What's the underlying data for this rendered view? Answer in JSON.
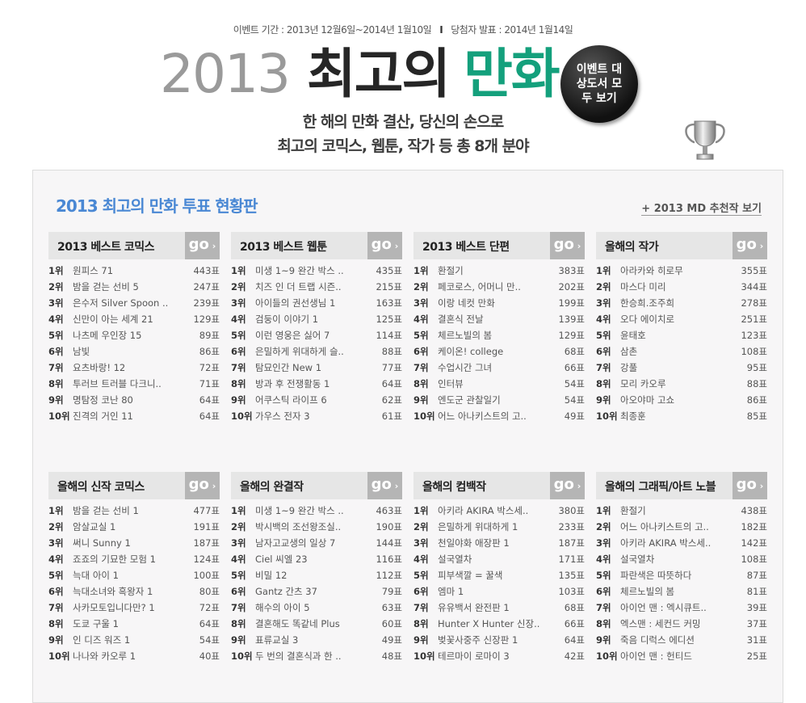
{
  "header": {
    "period": "이벤트 기간 : 2013년 12월6일~2014년 1월10일",
    "separator": "I",
    "announce": "당첨자 발표 : 2014년 1월14일",
    "title_year": "2013",
    "title_main": "최고의",
    "title_accent": "만화",
    "event_button": "이벤트 대상도서 모두 보기",
    "subtitle_1": "한 해의 만화 결산, 당신의 손으로",
    "subtitle_2": "최고의 코믹스, 웹툰, 작가 등 총 8개 분야",
    "accent_color": "#14a07c",
    "icon": "trophy-icon"
  },
  "board": {
    "title": "2013 최고의 만화 투표 현황판",
    "md_link": "+ 2013 MD 추천작 보기",
    "title_color": "#4a88d4",
    "go_label": "go",
    "panels": [
      {
        "title": "2013 베스트 코믹스",
        "items": [
          [
            "1위",
            "원피스 71",
            "443표"
          ],
          [
            "2위",
            "밤을 걷는 선비 5",
            "247표"
          ],
          [
            "3위",
            "은수저 Silver Spoon ..",
            "239표"
          ],
          [
            "4위",
            "신만이 아는 세계 21",
            "129표"
          ],
          [
            "5위",
            "나츠메 우인장 15",
            "89표"
          ],
          [
            "6위",
            "남빛",
            "86표"
          ],
          [
            "7위",
            "요츠바랑! 12",
            "72표"
          ],
          [
            "8위",
            "투러브 트러블 다크니..",
            "71표"
          ],
          [
            "9위",
            "명탐정 코난 80",
            "64표"
          ],
          [
            "10위",
            "진격의 거인 11",
            "64표"
          ]
        ]
      },
      {
        "title": "2013 베스트 웹툰",
        "items": [
          [
            "1위",
            "미생 1~9 완간 박스 ..",
            "435표"
          ],
          [
            "2위",
            "치즈 인 더 트랩 시즌..",
            "215표"
          ],
          [
            "3위",
            "아이들의 권선생님 1",
            "163표"
          ],
          [
            "4위",
            "검둥이 이야기 1",
            "125표"
          ],
          [
            "5위",
            "이런 영웅은 싫어 7",
            "114표"
          ],
          [
            "6위",
            "은밀하게 위대하게 슬..",
            "88표"
          ],
          [
            "7위",
            "탐묘인간 New 1",
            "77표"
          ],
          [
            "8위",
            "방과 후 전쟁활동 1",
            "64표"
          ],
          [
            "9위",
            "어쿠스틱 라이프 6",
            "62표"
          ],
          [
            "10위",
            "가우스 전자 3",
            "61표"
          ]
        ]
      },
      {
        "title": "2013 베스트 단편",
        "items": [
          [
            "1위",
            "환절기",
            "383표"
          ],
          [
            "2위",
            "페코로스, 어머니 만..",
            "202표"
          ],
          [
            "3위",
            "이랑 네컷 만화",
            "199표"
          ],
          [
            "4위",
            "결혼식 전날",
            "139표"
          ],
          [
            "5위",
            "체르노빌의 봄",
            "129표"
          ],
          [
            "6위",
            "케이온! college",
            "68표"
          ],
          [
            "7위",
            "수업시간 그녀",
            "66표"
          ],
          [
            "8위",
            "인터뷰",
            "54표"
          ],
          [
            "9위",
            "엔도군 관찰일기",
            "54표"
          ],
          [
            "10위",
            "어느 아나키스트의 고..",
            "49표"
          ]
        ]
      },
      {
        "title": "올해의 작가",
        "items": [
          [
            "1위",
            "아라카와 히로무",
            "355표"
          ],
          [
            "2위",
            "마스다 미리",
            "344표"
          ],
          [
            "3위",
            "한승희.조주희",
            "278표"
          ],
          [
            "4위",
            "오다 에이치로",
            "251표"
          ],
          [
            "5위",
            "윤태호",
            "123표"
          ],
          [
            "6위",
            "삼촌",
            "108표"
          ],
          [
            "7위",
            "강풀",
            "95표"
          ],
          [
            "8위",
            "모리 카오루",
            "88표"
          ],
          [
            "9위",
            "아오야마 고쇼",
            "86표"
          ],
          [
            "10위",
            "최종훈",
            "85표"
          ]
        ]
      },
      {
        "title": "올해의 신작 코믹스",
        "items": [
          [
            "1위",
            "밤을 걷는 선비 1",
            "477표"
          ],
          [
            "2위",
            "암살교실 1",
            "191표"
          ],
          [
            "3위",
            "써니 Sunny 1",
            "187표"
          ],
          [
            "4위",
            "죠죠의 기묘한 모험 1",
            "124표"
          ],
          [
            "5위",
            "늑대 아이 1",
            "100표"
          ],
          [
            "6위",
            "늑대소녀와 흑왕자 1",
            "80표"
          ],
          [
            "7위",
            "사카모토입니다만? 1",
            "72표"
          ],
          [
            "8위",
            "도쿄 구울 1",
            "64표"
          ],
          [
            "9위",
            "인 디즈 워즈 1",
            "54표"
          ],
          [
            "10위",
            "나나와 카오루 1",
            "40표"
          ]
        ]
      },
      {
        "title": "올해의 완결작",
        "items": [
          [
            "1위",
            "미생 1~9 완간 박스 ..",
            "463표"
          ],
          [
            "2위",
            "박시백의 조선왕조실..",
            "190표"
          ],
          [
            "3위",
            "남자고교생의 일상 7",
            "144표"
          ],
          [
            "4위",
            "Ciel 씨엘 23",
            "116표"
          ],
          [
            "5위",
            "비밀 12",
            "112표"
          ],
          [
            "6위",
            "Gantz 간츠 37",
            "79표"
          ],
          [
            "7위",
            "해수의 아이 5",
            "63표"
          ],
          [
            "8위",
            "결혼해도 똑같네 Plus",
            "60표"
          ],
          [
            "9위",
            "표류교실 3",
            "49표"
          ],
          [
            "10위",
            "두 번의 결혼식과 한 ..",
            "48표"
          ]
        ]
      },
      {
        "title": "올해의 컴백작",
        "items": [
          [
            "1위",
            "아키라 AKIRA 박스세..",
            "380표"
          ],
          [
            "2위",
            "은밀하게 위대하게 1",
            "233표"
          ],
          [
            "3위",
            "천일야화 애장판 1",
            "187표"
          ],
          [
            "4위",
            "설국열차",
            "171표"
          ],
          [
            "5위",
            "피부색깔 = 꿀색",
            "135표"
          ],
          [
            "6위",
            "엠마 1",
            "103표"
          ],
          [
            "7위",
            "유유백서 완전판 1",
            "68표"
          ],
          [
            "8위",
            "Hunter X Hunter 신장..",
            "66표"
          ],
          [
            "9위",
            "벚꽃사중주 신장판 1",
            "64표"
          ],
          [
            "10위",
            "테르마이 로마이 3",
            "42표"
          ]
        ]
      },
      {
        "title": "올해의 그래픽/아트 노블",
        "items": [
          [
            "1위",
            "환절기",
            "438표"
          ],
          [
            "2위",
            "어느 아나키스트의 고..",
            "182표"
          ],
          [
            "3위",
            "아키라 AKIRA 박스세..",
            "142표"
          ],
          [
            "4위",
            "설국열차",
            "108표"
          ],
          [
            "5위",
            "파란색은 따뜻하다",
            "87표"
          ],
          [
            "6위",
            "체르노빌의 봄",
            "81표"
          ],
          [
            "7위",
            "아이언 맨 : 엑시큐트..",
            "39표"
          ],
          [
            "8위",
            "엑스맨 : 세컨드 커밍",
            "37표"
          ],
          [
            "9위",
            "죽음 디럭스 에디션",
            "31표"
          ],
          [
            "10위",
            "아이언 맨 : 헌티드",
            "25표"
          ]
        ]
      }
    ]
  }
}
